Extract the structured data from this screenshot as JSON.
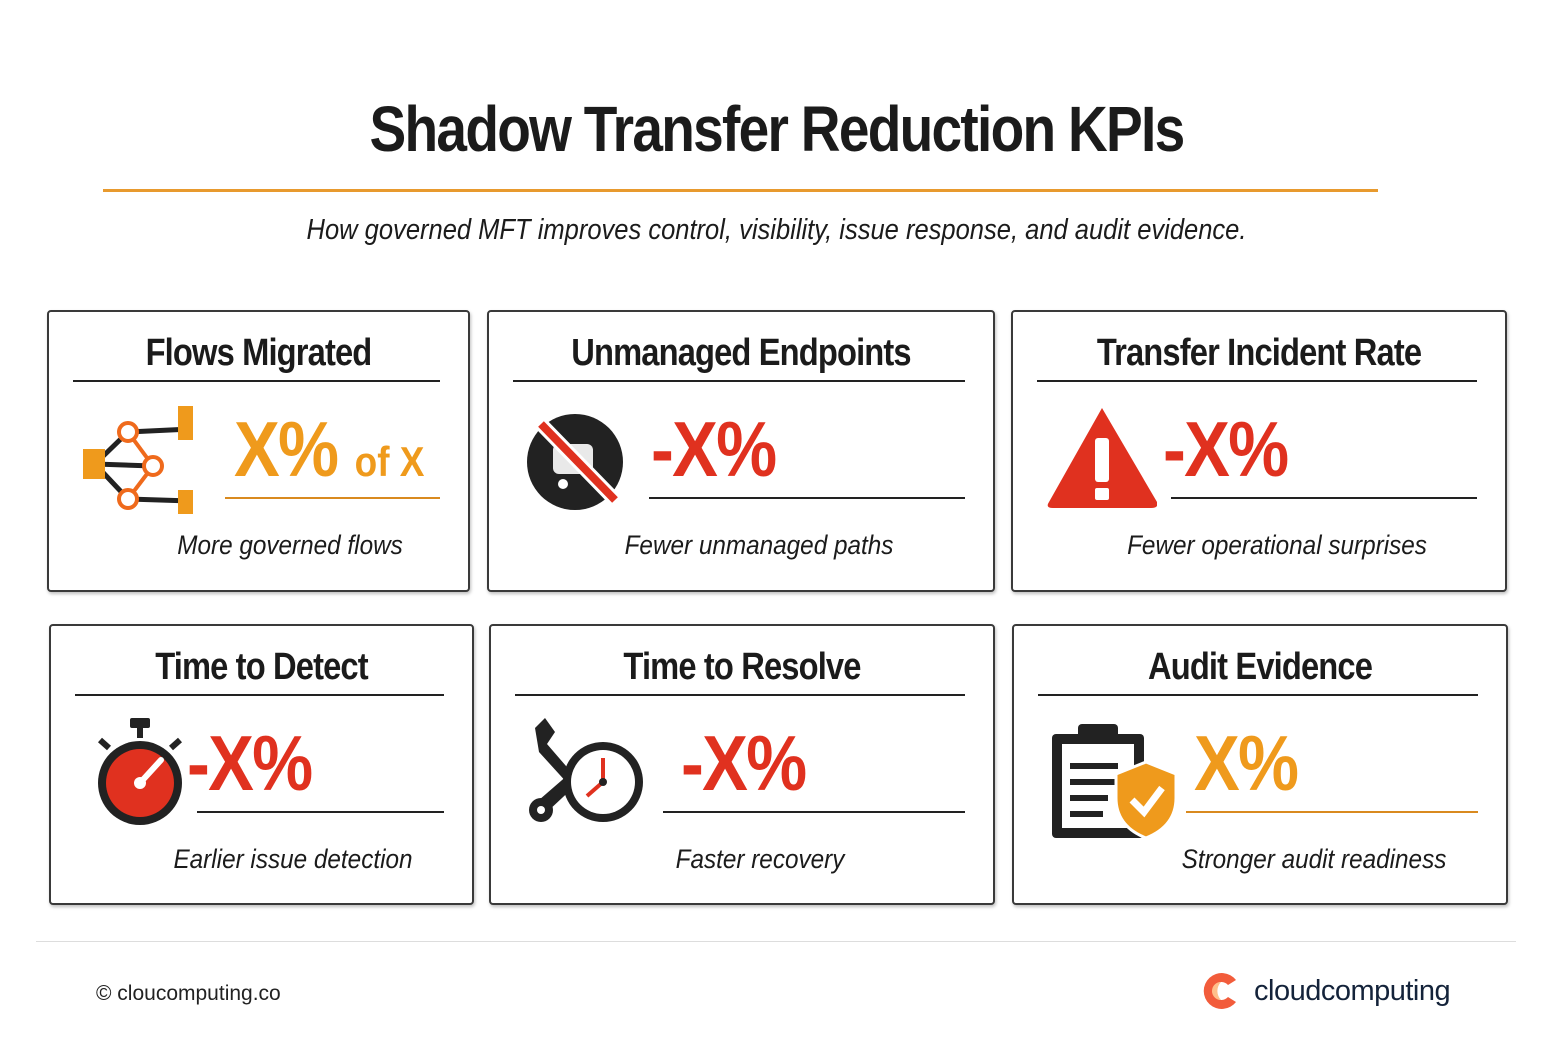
{
  "header": {
    "title": "Shadow Transfer Reduction KPIs",
    "subtitle": "How governed MFT improves control, visibility, issue response, and audit evidence."
  },
  "colors": {
    "orange": "#ef9a1c",
    "red": "#e0311f",
    "dark": "#222222",
    "accent_rule": "#e89a2e"
  },
  "cards": [
    {
      "title": "Flows Migrated",
      "value": "X%",
      "value_suffix": "of X",
      "caption": "More governed flows",
      "icon": "network-flow-icon",
      "color": "#ef9a1c"
    },
    {
      "title": "Unmanaged Endpoints",
      "value": "-X%",
      "value_suffix": "",
      "caption": "Fewer unmanaged paths",
      "icon": "no-endpoint-icon",
      "color": "#e0311f"
    },
    {
      "title": "Transfer Incident Rate",
      "value": "-X%",
      "value_suffix": "",
      "caption": "Fewer operational surprises",
      "icon": "warning-icon",
      "color": "#e0311f"
    },
    {
      "title": "Time to Detect",
      "value": "-X%",
      "value_suffix": "",
      "caption": "Earlier issue detection",
      "icon": "stopwatch-icon",
      "color": "#e0311f"
    },
    {
      "title": "Time to Resolve",
      "value": "-X%",
      "value_suffix": "",
      "caption": "Faster recovery",
      "icon": "wrench-clock-icon",
      "color": "#e0311f"
    },
    {
      "title": "Audit Evidence",
      "value": "X%",
      "value_suffix": "",
      "caption": "Stronger audit readiness",
      "icon": "clipboard-shield-icon",
      "color": "#ef9a1c"
    }
  ],
  "footer": {
    "copyright": "© cloucomputing.co",
    "brand": "cloudcomputing"
  }
}
